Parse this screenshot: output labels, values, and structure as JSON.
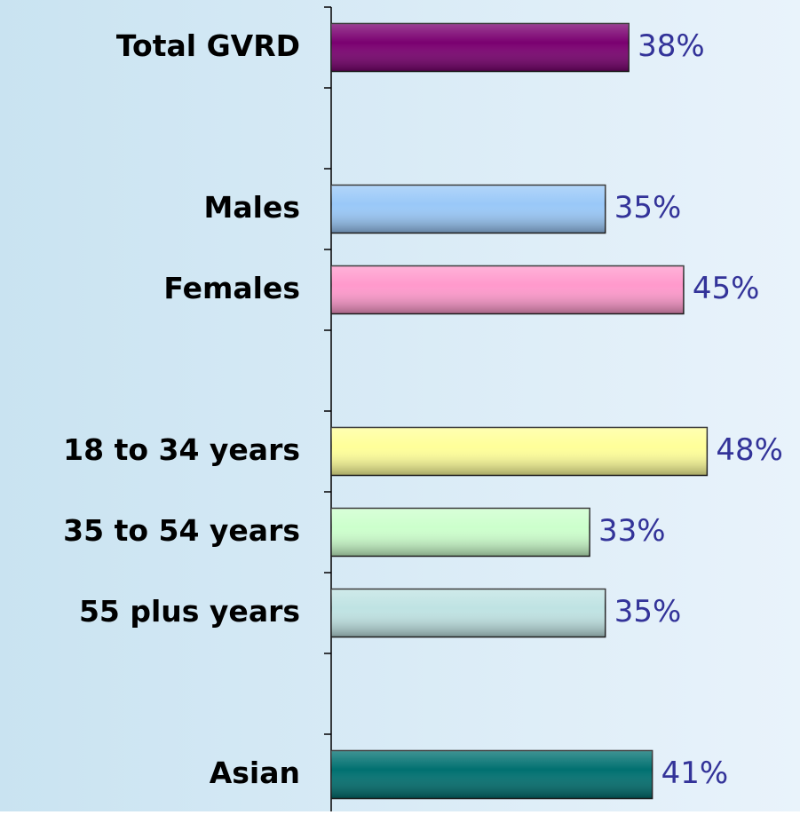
{
  "chart_data": {
    "type": "hbar",
    "categories": [
      "Total GVRD",
      null,
      "Males",
      "Females",
      null,
      "18 to 34 years",
      "35 to 54 years",
      "55 plus years",
      null,
      "Asian"
    ],
    "values": [
      38,
      null,
      35,
      45,
      null,
      48,
      33,
      35,
      null,
      41
    ],
    "value_labels": [
      "38%",
      null,
      "35%",
      "45%",
      null,
      "48%",
      "33%",
      "35%",
      null,
      "41%"
    ],
    "colors": [
      "#7a0070",
      null,
      "#99c8f8",
      "#ff99cc",
      null,
      "#ffff99",
      "#ccffcc",
      "#bfe3e3",
      null,
      "#007070"
    ],
    "xlim": [
      0,
      100
    ]
  }
}
